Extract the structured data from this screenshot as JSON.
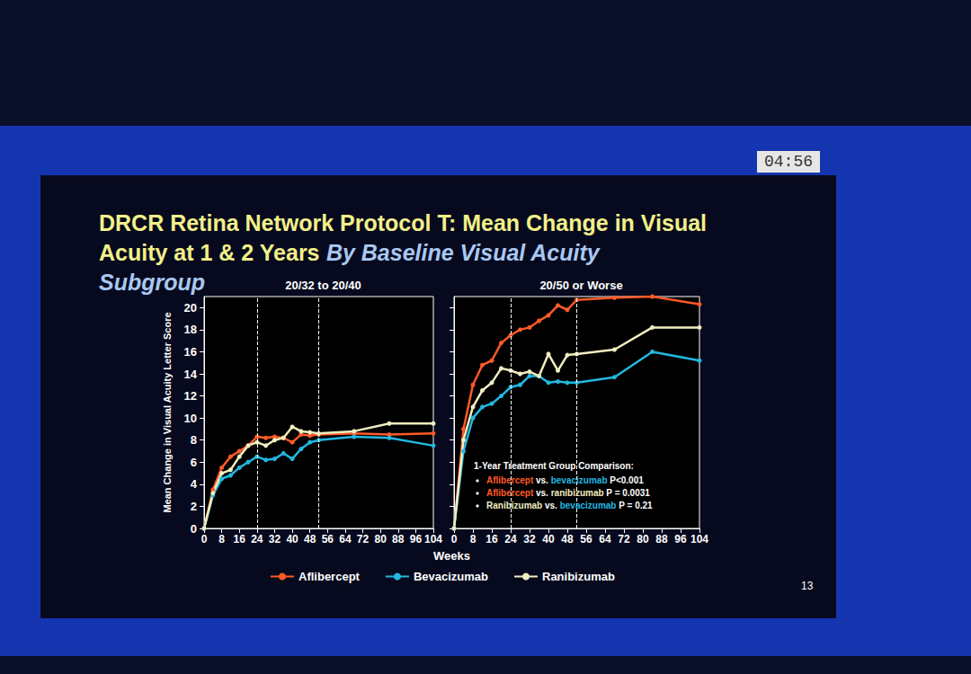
{
  "slide": {
    "title": "DRCR Retina Network Protocol T: Mean Change in Visual Acuity at 1 & 2 Years",
    "title_emphasis": "By Baseline Visual Acuity Subgroup",
    "xlabel": "Weeks",
    "page_number": "13",
    "timer": "04:56"
  },
  "chart_data": [
    {
      "type": "line",
      "title": "20/32 to 20/40",
      "ylabel": "Mean Change in Visual Acuity Letter Score",
      "x": [
        0,
        4,
        8,
        12,
        16,
        20,
        24,
        28,
        32,
        36,
        40,
        44,
        48,
        52,
        68,
        84,
        104
      ],
      "xlim": [
        0,
        104
      ],
      "xticks": [
        0,
        8,
        16,
        24,
        32,
        40,
        48,
        56,
        64,
        72,
        80,
        88,
        96,
        104
      ],
      "ylim": [
        0,
        21
      ],
      "yticks": [
        0,
        2,
        4,
        6,
        8,
        10,
        12,
        14,
        16,
        18,
        20
      ],
      "grid": false,
      "legend": "bottom",
      "vlines": [
        24,
        52
      ],
      "series": [
        {
          "name": "Aflibercept",
          "color": "#ff5a28",
          "marker": "circle",
          "values": [
            0,
            3.5,
            5.5,
            6.5,
            7,
            7.5,
            8.3,
            8.2,
            8.3,
            8.2,
            7.8,
            8.5,
            8.4,
            8.5,
            8.6,
            8.5,
            8.6
          ]
        },
        {
          "name": "Bevacizumab",
          "color": "#22b8e0",
          "marker": "circle",
          "values": [
            0,
            3,
            4.5,
            4.8,
            5.5,
            6,
            6.5,
            6.2,
            6.3,
            6.8,
            6.3,
            7.2,
            7.8,
            8,
            8.3,
            8.2,
            7.5
          ]
        },
        {
          "name": "Ranibizumab",
          "color": "#f0eec0",
          "marker": "circle",
          "values": [
            0,
            3.2,
            5,
            5.3,
            6.5,
            7.5,
            7.8,
            7.5,
            8,
            8.2,
            9.2,
            8.8,
            8.7,
            8.6,
            8.8,
            9.5,
            9.5
          ]
        }
      ]
    },
    {
      "type": "line",
      "title": "20/50 or Worse",
      "tick_labels": "x",
      "x": [
        0,
        4,
        8,
        12,
        16,
        20,
        24,
        28,
        32,
        36,
        40,
        44,
        48,
        52,
        68,
        84,
        104
      ],
      "xlim": [
        0,
        104
      ],
      "xticks": [
        0,
        8,
        16,
        24,
        32,
        40,
        48,
        56,
        64,
        72,
        80,
        88,
        96,
        104
      ],
      "ylim": [
        0,
        21
      ],
      "yticks": [
        0,
        2,
        4,
        6,
        8,
        10,
        12,
        14,
        16,
        18,
        20
      ],
      "grid": false,
      "vlines": [
        24,
        52
      ],
      "series": [
        {
          "name": "Aflibercept",
          "color": "#ff5a28",
          "marker": "circle",
          "values": [
            0,
            9,
            13,
            14.8,
            15.2,
            16.8,
            17.5,
            18,
            18.2,
            18.8,
            19.3,
            20.2,
            19.8,
            20.7,
            20.9,
            21,
            20.3
          ]
        },
        {
          "name": "Bevacizumab",
          "color": "#22b8e0",
          "marker": "circle",
          "values": [
            0,
            7,
            10,
            11,
            11.3,
            12,
            12.8,
            13,
            13.8,
            13.8,
            13.2,
            13.3,
            13.2,
            13.2,
            13.7,
            16,
            15.2
          ]
        },
        {
          "name": "Ranibizumab",
          "color": "#f0eec0",
          "marker": "circle",
          "values": [
            0,
            8,
            11,
            12.5,
            13.2,
            14.5,
            14.3,
            14,
            14.2,
            13.8,
            15.8,
            14.3,
            15.7,
            15.8,
            16.2,
            18.2,
            18.2
          ]
        }
      ],
      "annotation": {
        "title": "1-Year Treatment Group Comparison:",
        "comparisons": [
          {
            "first": "Aflibercept",
            "joiner": "vs.",
            "second": "bevacizumab",
            "p": "P<0.001"
          },
          {
            "first": "Aflibercept",
            "joiner": "vs.",
            "second": "ranibizumab",
            "p": "P = 0.0031"
          },
          {
            "first": "Ranibizumab",
            "joiner": "vs.",
            "second": "bevacizumab",
            "p": "P = 0.21"
          }
        ]
      }
    }
  ]
}
